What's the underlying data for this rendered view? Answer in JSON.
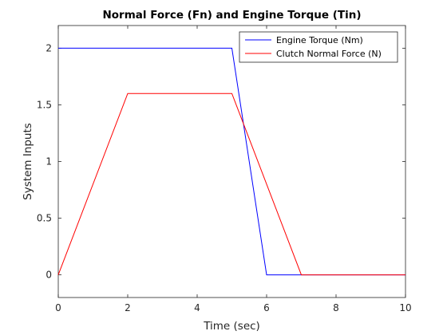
{
  "chart_data": {
    "type": "line",
    "title": "Normal Force (Fn) and Engine Torque (Tin)",
    "xlabel": "Time (sec)",
    "ylabel": "System Inputs",
    "xlim": [
      0,
      10
    ],
    "ylim": [
      -0.2,
      2.2
    ],
    "xticks": [
      0,
      2,
      4,
      6,
      8,
      10
    ],
    "xtick_labels": [
      "0",
      "2",
      "4",
      "6",
      "8",
      "10"
    ],
    "yticks": [
      0,
      0.5,
      1,
      1.5,
      2
    ],
    "ytick_labels": [
      "0",
      "0.5",
      "1",
      "1.5",
      "2"
    ],
    "grid": false,
    "legend_position": "top-right",
    "series": [
      {
        "name": "Engine Torque (Nm)",
        "color": "#0000ff",
        "x": [
          0,
          5,
          6,
          10
        ],
        "y": [
          2,
          2,
          0,
          0
        ]
      },
      {
        "name": "Clutch Normal Force (N)",
        "color": "#ff0000",
        "x": [
          0,
          2,
          5,
          7,
          10
        ],
        "y": [
          0,
          1.6,
          1.6,
          0,
          0
        ]
      }
    ]
  }
}
